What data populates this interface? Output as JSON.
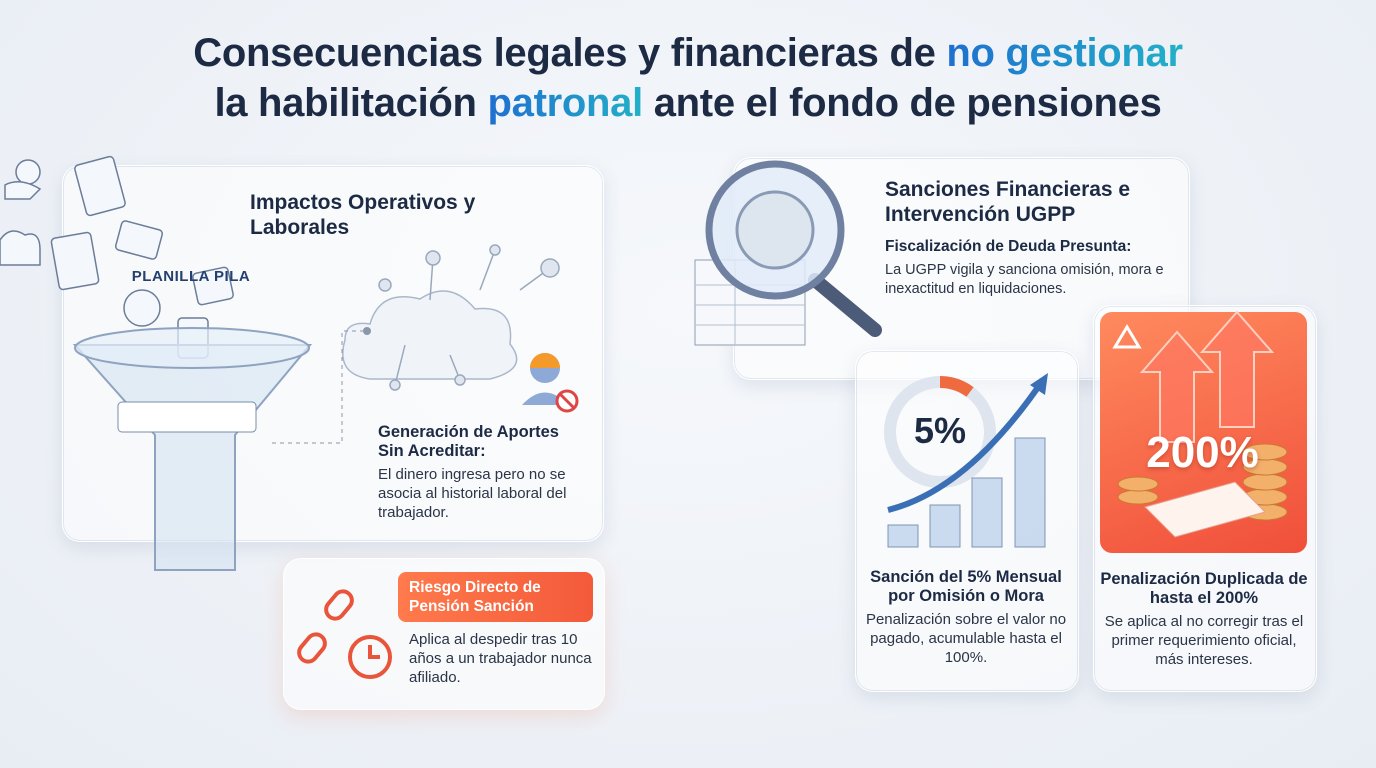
{
  "header": {
    "title_parts": [
      "Consecuencias legales y financieras de ",
      "no gestionar",
      "la habilitación ",
      "patronal",
      " ante el fondo de pensiones"
    ]
  },
  "operational": {
    "heading": "Impactos Operativos y Laborales",
    "funnel_label": "PLANILLA PILA",
    "subheading": "Generación de Aportes Sin Acreditar:",
    "body": "El dinero ingresa pero no se asocia al historial laboral del trabajador."
  },
  "risk": {
    "heading": "Riesgo Directo de Pensión Sanción",
    "body": "Aplica al despedir tras 10 años a un trabajador nunca afiliado."
  },
  "ugpp": {
    "heading": "Sanciones Financieras e Intervención UGPP",
    "subheading": "Fiscalización de Deuda Presunta:",
    "body": "La UGPP vigila y sanciona omisión, mora e inexactitud en liquidaciones."
  },
  "monthly": {
    "figure": "5%",
    "heading": "Sanción del 5% Mensual por Omisión o Mora",
    "body": "Penalización sobre el valor no pagado, acumulable hasta el 100%."
  },
  "double": {
    "figure": "200%",
    "heading": "Penalización Duplicada de hasta el 200%",
    "body": "Se aplica al no corregir tras el primer requerimiento oficial, más intereses."
  }
}
